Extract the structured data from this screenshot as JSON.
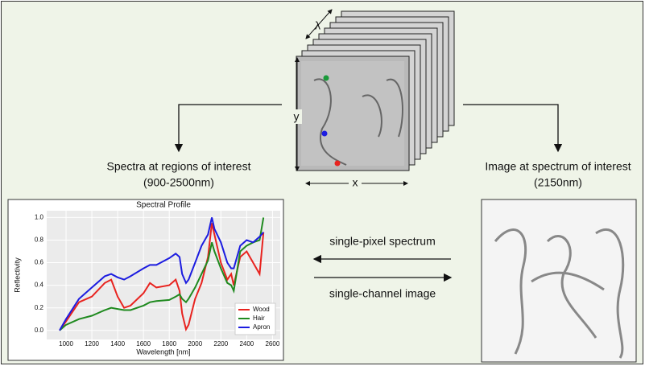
{
  "labels": {
    "lambda": "λ",
    "y_axis": "y",
    "x_axis": "x",
    "left_title": "Spectra at regions of interest",
    "left_range": "(900-2500nm)",
    "right_title": "Image at spectrum of interest",
    "right_range": "(2150nm)",
    "arrow_left": "single-pixel spectrum",
    "arrow_right": "single-channel image"
  },
  "chart_data": {
    "type": "line",
    "title": "Spectral Profile",
    "xlabel": "Wavelength [nm]",
    "ylabel": "Reflectivity",
    "x": [
      950,
      1000,
      1100,
      1200,
      1300,
      1350,
      1400,
      1450,
      1500,
      1600,
      1650,
      1700,
      1800,
      1850,
      1880,
      1900,
      1930,
      1950,
      2000,
      2050,
      2100,
      2130,
      2150,
      2200,
      2250,
      2280,
      2300,
      2350,
      2400,
      2450,
      2500,
      2530
    ],
    "series": [
      {
        "name": "Wood",
        "color": "#e8231f",
        "values": [
          0.0,
          0.08,
          0.25,
          0.3,
          0.42,
          0.45,
          0.3,
          0.2,
          0.22,
          0.33,
          0.42,
          0.38,
          0.4,
          0.45,
          0.35,
          0.15,
          0.01,
          0.05,
          0.28,
          0.42,
          0.65,
          0.95,
          0.85,
          0.6,
          0.45,
          0.5,
          0.4,
          0.65,
          0.7,
          0.6,
          0.5,
          0.87
        ]
      },
      {
        "name": "Hair",
        "color": "#1f8a1f",
        "values": [
          0.0,
          0.05,
          0.1,
          0.13,
          0.18,
          0.2,
          0.19,
          0.18,
          0.18,
          0.22,
          0.25,
          0.26,
          0.27,
          0.3,
          0.32,
          0.28,
          0.25,
          0.28,
          0.38,
          0.5,
          0.62,
          0.78,
          0.7,
          0.55,
          0.42,
          0.4,
          0.35,
          0.7,
          0.75,
          0.78,
          0.8,
          1.0
        ]
      },
      {
        "name": "Apron",
        "color": "#1c1ce0",
        "values": [
          0.0,
          0.1,
          0.28,
          0.38,
          0.48,
          0.5,
          0.47,
          0.45,
          0.48,
          0.55,
          0.58,
          0.58,
          0.64,
          0.68,
          0.65,
          0.5,
          0.42,
          0.45,
          0.6,
          0.75,
          0.85,
          1.0,
          0.9,
          0.78,
          0.6,
          0.55,
          0.55,
          0.75,
          0.8,
          0.78,
          0.83,
          0.87
        ]
      }
    ],
    "xlim": [
      850,
      2660
    ],
    "ylim": [
      -0.08,
      1.06
    ],
    "xticks": [
      1000,
      1200,
      1400,
      1600,
      1800,
      2000,
      2200,
      2400,
      2600
    ],
    "yticks": [
      {
        "value": 0,
        "label": "0.0"
      },
      0.2,
      0.4,
      0.6,
      0.8,
      {
        "value": 1,
        "label": "1.0"
      }
    ],
    "grid": true,
    "legend": "lower right"
  }
}
